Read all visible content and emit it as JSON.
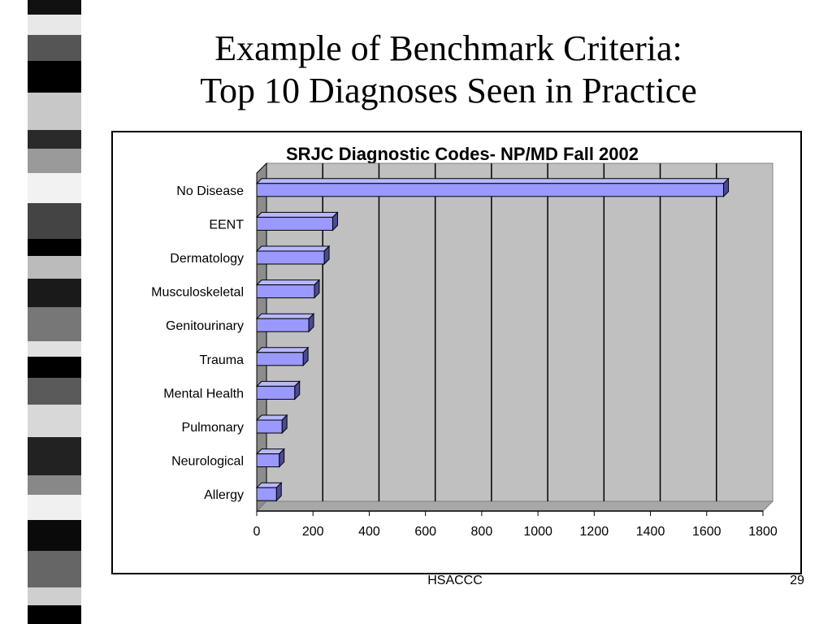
{
  "slide": {
    "title_line1": "Example of Benchmark Criteria:",
    "title_line2": "Top 10 Diagnoses Seen in Practice",
    "footer": "HSACCC",
    "page_number": "29"
  },
  "colors": {
    "bar_face": "#9999FF",
    "bar_side": "#4B4B8F",
    "plot_bg": "#C0C0C0"
  },
  "chart_data": {
    "type": "bar",
    "orientation": "horizontal",
    "title": "SRJC Diagnostic Codes- NP/MD Fall 2002",
    "categories": [
      "No Disease",
      "EENT",
      "Dermatology",
      "Musculoskeletal",
      "Genitourinary",
      "Trauma",
      "Mental Health",
      "Pulmonary",
      "Neurological",
      "Allergy"
    ],
    "values": [
      1660,
      270,
      240,
      205,
      185,
      165,
      135,
      90,
      80,
      70
    ],
    "xlim": [
      0,
      1800
    ],
    "xticks": [
      "0",
      "200",
      "400",
      "600",
      "800",
      "1000",
      "1200",
      "1400",
      "1600",
      "1800"
    ],
    "grid": true,
    "legend": "none"
  }
}
